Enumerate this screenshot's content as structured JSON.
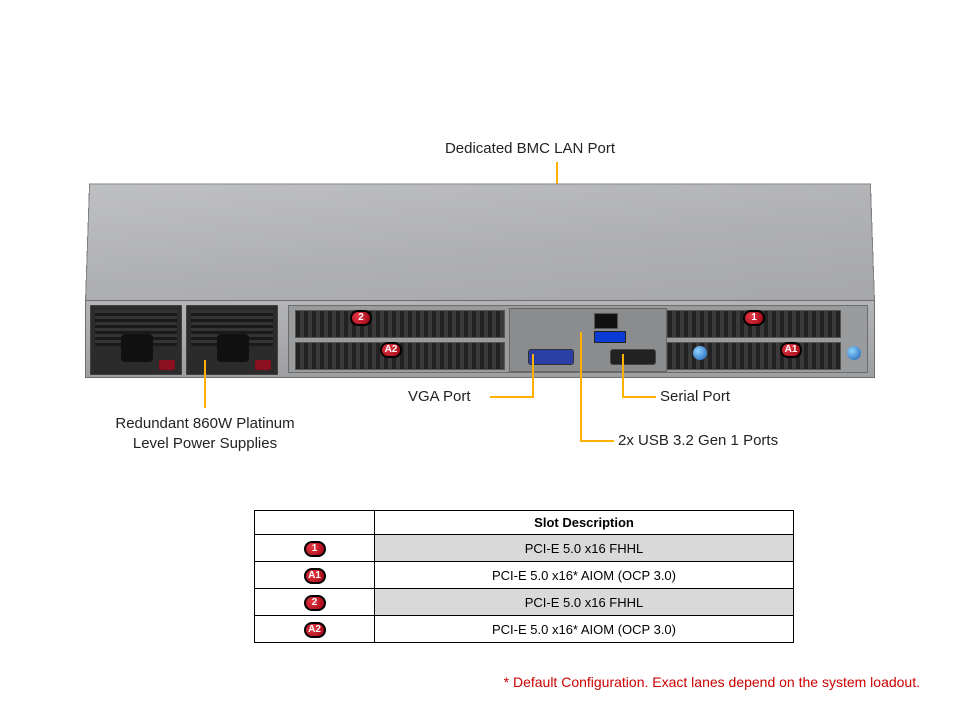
{
  "labels": {
    "bmc": "Dedicated BMC LAN Port",
    "psu": "Redundant 860W Platinum\nLevel Power Supplies",
    "vga": "VGA Port",
    "serial": "Serial Port",
    "usb": "2x USB 3.2 Gen 1 Ports"
  },
  "badges": {
    "s1": "1",
    "a1": "A1",
    "s2": "2",
    "a2": "A2"
  },
  "table": {
    "header": "Slot Description",
    "rows": [
      {
        "badge": "1",
        "desc": "PCI-E 5.0 x16 FHHL",
        "shade": true
      },
      {
        "badge": "A1",
        "desc": "PCI-E 5.0 x16* AIOM (OCP 3.0)",
        "shade": false
      },
      {
        "badge": "2",
        "desc": "PCI-E 5.0 x16 FHHL",
        "shade": true
      },
      {
        "badge": "A2",
        "desc": "PCI-E 5.0 x16* AIOM (OCP 3.0)",
        "shade": false
      }
    ]
  },
  "footnote": "* Default Configuration. Exact lanes depend on the system loadout.",
  "colors": {
    "callout": "#ffb000",
    "badge": "#c9001a",
    "footnote": "#cc0000"
  }
}
